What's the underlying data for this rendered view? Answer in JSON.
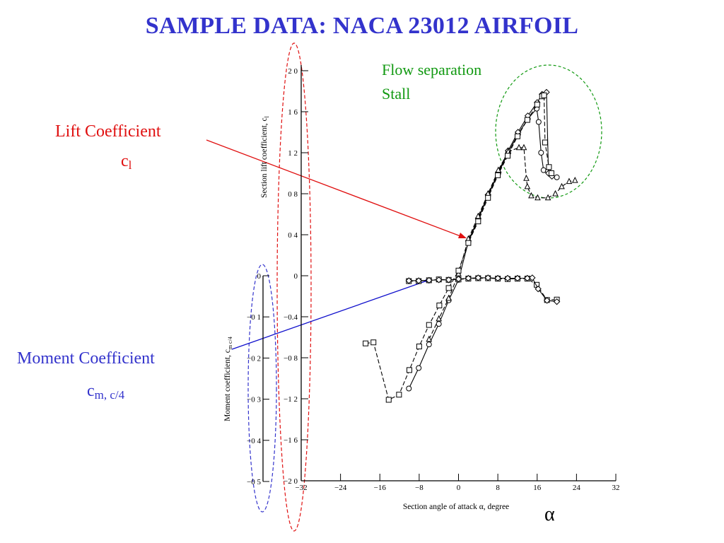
{
  "slide": {
    "title": "SAMPLE DATA: NACA 23012 AIRFOIL",
    "lift_label": "Lift Coefficient",
    "lift_symbol": "c",
    "lift_sub": "l",
    "moment_label": "Moment Coefficient",
    "moment_symbol": "c",
    "moment_sub": "m, c/4",
    "flow_note_1": "Flow separation",
    "flow_note_2": "Stall",
    "alpha_symbol": "α"
  },
  "colors": {
    "title": "#3333cc",
    "lift_annotation": "#e01010",
    "moment_annotation": "#3333cc",
    "stall_annotation": "#119911",
    "plot": "#000000"
  },
  "chart_data": {
    "type": "line",
    "xlabel": "Section angle of attack α, degree",
    "ylabel_lift": "Section lift coefficient, c",
    "ylabel_lift_sub": "l",
    "ylabel_moment": "Moment coefficient, c",
    "ylabel_moment_sub": "m c/4",
    "xlim": [
      -32,
      32
    ],
    "ylim_lift": [
      -2.0,
      2.0
    ],
    "ylim_moment": [
      -0.5,
      0.0
    ],
    "x_ticks": [
      -32,
      -24,
      -16,
      -8,
      0,
      8,
      16,
      24,
      32
    ],
    "x_tick_labels": [
      "−32",
      "−24",
      "−16",
      "−8",
      "0",
      "8",
      "16",
      "24",
      "32"
    ],
    "lift_ticks": [
      2.0,
      1.6,
      1.2,
      0.8,
      0.4,
      0,
      -0.4,
      -0.8,
      -1.2,
      -1.6,
      -2.0
    ],
    "lift_tick_labels": [
      "2 0",
      "1 6",
      "1 2",
      "0 8",
      "0 4",
      "0",
      "−0.4",
      "−0 8",
      "−1 2",
      "−1 6",
      "−2 0"
    ],
    "moment_ticks": [
      0,
      -0.1,
      -0.2,
      -0.3,
      -0.4,
      -0.5
    ],
    "moment_tick_labels": [
      "0",
      "−0 1",
      "−0 2",
      "−0 3",
      "−0 4",
      "−0 5"
    ],
    "lift_series": [
      {
        "marker": "circle",
        "points": [
          [
            -10.1,
            -1.1
          ],
          [
            -8.1,
            -0.9
          ],
          [
            -6.0,
            -0.67
          ],
          [
            -4.0,
            -0.47
          ],
          [
            -2.0,
            -0.24
          ],
          [
            0,
            -0.04
          ],
          [
            2.0,
            0.33
          ],
          [
            4.0,
            0.55
          ],
          [
            6.0,
            0.78
          ],
          [
            8.1,
            1.0
          ],
          [
            10.1,
            1.2
          ],
          [
            12.1,
            1.38
          ],
          [
            14.1,
            1.53
          ],
          [
            15.9,
            1.63
          ],
          [
            16.3,
            1.5
          ],
          [
            16.8,
            1.2
          ],
          [
            17.3,
            1.03
          ],
          [
            18.2,
            1.02
          ],
          [
            18.8,
            0.99
          ],
          [
            20.0,
            0.96
          ]
        ]
      },
      {
        "marker": "diamond",
        "points": [
          [
            2.0,
            0.34
          ],
          [
            4.0,
            0.56
          ],
          [
            6.0,
            0.79
          ],
          [
            8.1,
            1.01
          ],
          [
            10.1,
            1.22
          ],
          [
            12.1,
            1.4
          ],
          [
            14.1,
            1.56
          ],
          [
            16.0,
            1.69
          ],
          [
            17.0,
            1.77
          ],
          [
            17.9,
            1.79
          ],
          [
            18.3,
            1.0
          ],
          [
            19.0,
            0.97
          ]
        ]
      },
      {
        "marker": "triangle",
        "points": [
          [
            -6.0,
            -0.62
          ],
          [
            -4.0,
            -0.42
          ],
          [
            -2.0,
            -0.22
          ],
          [
            0,
            0.02
          ],
          [
            2.0,
            0.36
          ],
          [
            4.0,
            0.58
          ],
          [
            6.0,
            0.8
          ],
          [
            8.1,
            1.03
          ],
          [
            10.1,
            1.21
          ],
          [
            12.3,
            1.25
          ],
          [
            13.3,
            1.25
          ],
          [
            13.8,
            0.95
          ],
          [
            14.0,
            0.87
          ],
          [
            14.8,
            0.78
          ],
          [
            16.1,
            0.76
          ],
          [
            18.2,
            0.76
          ],
          [
            19.7,
            0.8
          ],
          [
            21.0,
            0.87
          ],
          [
            22.5,
            0.92
          ],
          [
            23.7,
            0.93
          ]
        ]
      },
      {
        "marker": "square",
        "points": [
          [
            -18.9,
            -0.66
          ],
          [
            -17.3,
            -0.65
          ],
          [
            -14.2,
            -1.21
          ],
          [
            -12.1,
            -1.16
          ],
          [
            -10.0,
            -0.92
          ],
          [
            -8.0,
            -0.69
          ],
          [
            -6.0,
            -0.48
          ],
          [
            -3.9,
            -0.29
          ],
          [
            -2.0,
            -0.12
          ],
          [
            0,
            0.05
          ],
          [
            2.0,
            0.32
          ],
          [
            4.0,
            0.53
          ],
          [
            6.0,
            0.76
          ],
          [
            8.0,
            0.98
          ],
          [
            10.0,
            1.17
          ],
          [
            12.0,
            1.36
          ],
          [
            14.0,
            1.52
          ],
          [
            16.0,
            1.67
          ],
          [
            17.0,
            1.75
          ],
          [
            17.4,
            1.76
          ],
          [
            17.6,
            1.3
          ],
          [
            18.4,
            1.06
          ],
          [
            18.9,
            1.0
          ]
        ]
      }
    ],
    "moment_series": [
      {
        "marker": "square",
        "points": [
          [
            -10.1,
            -0.013
          ],
          [
            -8.1,
            -0.013
          ],
          [
            -6.0,
            -0.011
          ],
          [
            -4.0,
            -0.009
          ],
          [
            -2.0,
            -0.01
          ],
          [
            0,
            -0.009
          ],
          [
            2.0,
            -0.007
          ],
          [
            4.0,
            -0.006
          ],
          [
            6.0,
            -0.006
          ],
          [
            8.0,
            -0.007
          ],
          [
            10.0,
            -0.008
          ],
          [
            12.0,
            -0.007
          ],
          [
            14.0,
            -0.007
          ],
          [
            15.9,
            -0.022
          ],
          [
            18.0,
            -0.059
          ],
          [
            20.0,
            -0.058
          ]
        ]
      },
      {
        "marker": "diamond",
        "points": [
          [
            -10.1,
            -0.012
          ],
          [
            -8.1,
            -0.012
          ],
          [
            -6.0,
            -0.011
          ],
          [
            -4.0,
            -0.01
          ],
          [
            -2.0,
            -0.01
          ],
          [
            0,
            -0.008
          ],
          [
            2.0,
            -0.006
          ],
          [
            4.0,
            -0.005
          ],
          [
            6.0,
            -0.005
          ],
          [
            8.0,
            -0.006
          ],
          [
            10.0,
            -0.006
          ],
          [
            12.0,
            -0.006
          ],
          [
            14.0,
            -0.006
          ],
          [
            15.0,
            -0.005
          ],
          [
            16.2,
            -0.032
          ],
          [
            18.0,
            -0.06
          ],
          [
            20.0,
            -0.063
          ]
        ]
      }
    ]
  }
}
